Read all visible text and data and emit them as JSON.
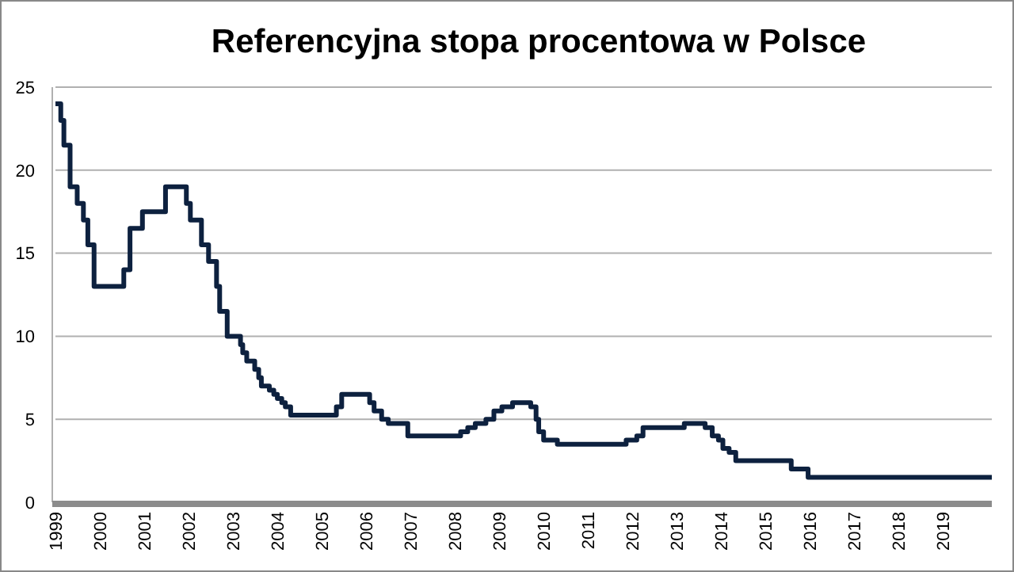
{
  "chart_data": {
    "type": "step",
    "title": "Referencyjna stopa procentowa w Polsce",
    "x": [
      1999,
      1999.12,
      1999.19,
      1999.33,
      1999.49,
      1999.63,
      1999.73,
      1999.87,
      2000.54,
      2000.68,
      2000.96,
      2001.48,
      2001.95,
      2002.04,
      2002.29,
      2002.45,
      2002.63,
      2002.7,
      2002.87,
      2003.17,
      2003.22,
      2003.31,
      2003.49,
      2003.58,
      2003.64,
      2003.82,
      2003.92,
      2004.0,
      2004.1,
      2004.18,
      2004.3,
      2005.33,
      2005.45,
      2006.08,
      2006.18,
      2006.35,
      2006.5,
      2006.94,
      2008.13,
      2008.29,
      2008.46,
      2008.7,
      2008.88,
      2009.06,
      2009.3,
      2009.71,
      2009.83,
      2009.89,
      2010.0,
      2010.31,
      2011.86,
      2012.1,
      2012.24,
      2013.17,
      2013.64,
      2013.8,
      2013.94,
      2014.04,
      2014.18,
      2014.33,
      2015.58,
      2015.96,
      2020.1
    ],
    "series": [
      {
        "color": "#0d213f",
        "values": [
          24,
          23,
          21.5,
          19,
          18,
          17,
          15.5,
          13,
          14,
          16.5,
          17.5,
          19,
          18,
          17,
          15.5,
          14.5,
          13,
          11.5,
          10,
          9.5,
          9,
          8.5,
          8,
          7.5,
          7,
          6.75,
          6.5,
          6.25,
          6,
          5.75,
          5.25,
          5.75,
          6.5,
          6,
          5.5,
          5,
          4.75,
          4,
          4.25,
          4.5,
          4.75,
          5,
          5.5,
          5.75,
          6,
          5.75,
          5,
          4.25,
          3.75,
          3.5,
          3.75,
          4,
          4.5,
          4.75,
          4.5,
          4,
          3.75,
          3.25,
          3,
          2.5,
          2,
          1.5,
          1.5
        ]
      }
    ],
    "xlim": [
      1999,
      2020.1
    ],
    "xticks": [
      1999,
      2000,
      2001,
      2002,
      2003,
      2004,
      2005,
      2006,
      2007,
      2008,
      2009,
      2010,
      2011,
      2012,
      2013,
      2014,
      2015,
      2016,
      2017,
      2018,
      2019
    ],
    "ylim": [
      0,
      25
    ],
    "yticks": [
      0,
      5,
      10,
      15,
      20,
      25
    ],
    "grid": "y",
    "line_style": "solid",
    "marker": "none"
  }
}
